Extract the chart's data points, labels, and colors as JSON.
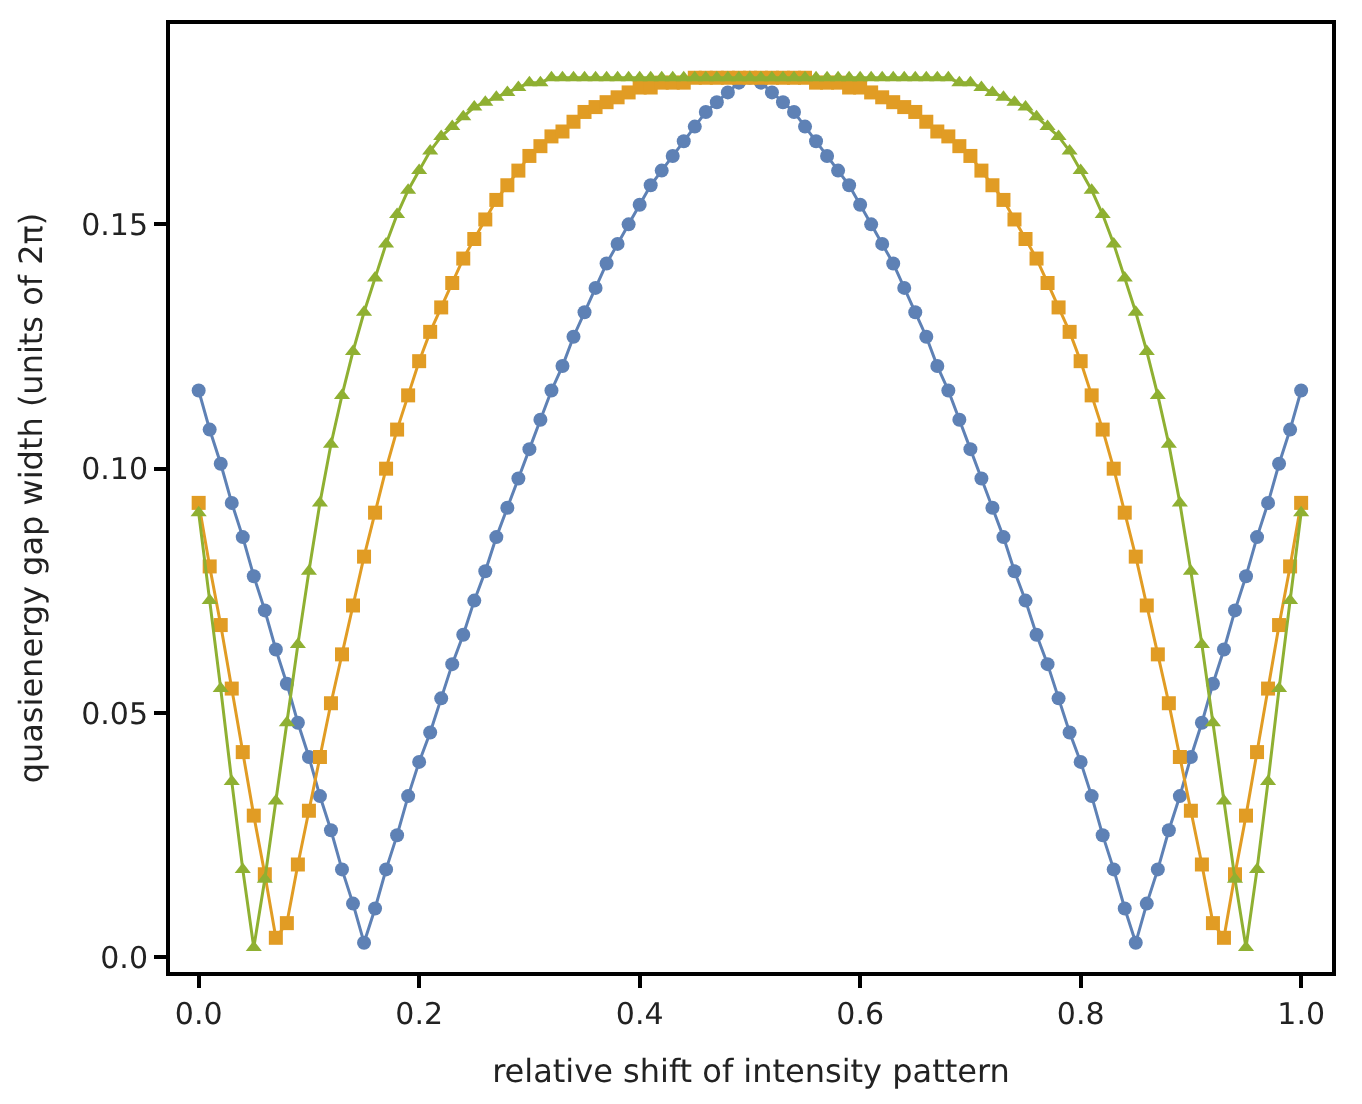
{
  "chart_data": {
    "type": "line",
    "xlabel": "relative shift of intensity pattern",
    "ylabel": "quasienergy gap width (units of 2π)",
    "x": [
      0,
      0.01,
      0.02,
      0.03,
      0.04,
      0.05,
      0.06,
      0.07,
      0.08,
      0.09,
      0.1,
      0.11,
      0.12,
      0.13,
      0.14,
      0.15,
      0.16,
      0.17,
      0.18,
      0.19,
      0.2,
      0.21,
      0.22,
      0.23,
      0.24,
      0.25,
      0.26,
      0.27,
      0.28,
      0.29,
      0.3,
      0.31,
      0.32,
      0.33,
      0.34,
      0.35,
      0.36,
      0.37,
      0.38,
      0.39,
      0.4,
      0.41,
      0.42,
      0.43,
      0.44,
      0.45,
      0.46,
      0.47,
      0.48,
      0.49,
      0.5,
      0.51,
      0.52,
      0.53,
      0.54,
      0.55,
      0.56,
      0.57,
      0.58,
      0.59,
      0.6,
      0.61,
      0.62,
      0.63,
      0.64,
      0.65,
      0.66,
      0.67,
      0.68,
      0.69,
      0.7,
      0.71,
      0.72,
      0.73,
      0.74,
      0.75,
      0.76,
      0.77,
      0.78,
      0.79,
      0.8,
      0.81,
      0.82,
      0.83,
      0.84,
      0.85,
      0.86,
      0.87,
      0.88,
      0.89,
      0.9,
      0.91,
      0.92,
      0.93,
      0.94,
      0.95,
      0.96,
      0.97,
      0.98,
      0.99,
      1.0
    ],
    "series": [
      {
        "color": "#5e81b5",
        "marker": "circle",
        "values": [
          0.116,
          0.108,
          0.101,
          0.093,
          0.086,
          0.078,
          0.071,
          0.063,
          0.056,
          0.048,
          0.041,
          0.033,
          0.026,
          0.018,
          0.011,
          0.003,
          0.01,
          0.018,
          0.025,
          0.033,
          0.04,
          0.046,
          0.053,
          0.06,
          0.066,
          0.073,
          0.079,
          0.086,
          0.092,
          0.098,
          0.104,
          0.11,
          0.116,
          0.121,
          0.127,
          0.132,
          0.137,
          0.142,
          0.146,
          0.15,
          0.154,
          0.158,
          0.161,
          0.164,
          0.167,
          0.17,
          0.173,
          0.175,
          0.177,
          0.179,
          0.18,
          0.179,
          0.177,
          0.175,
          0.173,
          0.17,
          0.167,
          0.164,
          0.161,
          0.158,
          0.154,
          0.15,
          0.146,
          0.142,
          0.137,
          0.132,
          0.127,
          0.121,
          0.116,
          0.11,
          0.104,
          0.098,
          0.092,
          0.086,
          0.079,
          0.073,
          0.066,
          0.06,
          0.053,
          0.046,
          0.04,
          0.033,
          0.025,
          0.018,
          0.01,
          0.003,
          0.011,
          0.018,
          0.026,
          0.033,
          0.041,
          0.048,
          0.056,
          0.063,
          0.071,
          0.078,
          0.086,
          0.093,
          0.101,
          0.108,
          0.116
        ]
      },
      {
        "color": "#e19c24",
        "marker": "square",
        "values": [
          0.093,
          0.08,
          0.068,
          0.055,
          0.042,
          0.029,
          0.017,
          0.004,
          0.007,
          0.019,
          0.03,
          0.041,
          0.052,
          0.062,
          0.072,
          0.082,
          0.091,
          0.1,
          0.108,
          0.115,
          0.122,
          0.128,
          0.133,
          0.138,
          0.143,
          0.147,
          0.151,
          0.155,
          0.158,
          0.161,
          0.164,
          0.166,
          0.168,
          0.169,
          0.171,
          0.173,
          0.174,
          0.175,
          0.176,
          0.177,
          0.178,
          0.178,
          0.179,
          0.179,
          0.179,
          0.18,
          0.18,
          0.18,
          0.18,
          0.18,
          0.18,
          0.18,
          0.18,
          0.18,
          0.18,
          0.18,
          0.179,
          0.179,
          0.179,
          0.178,
          0.178,
          0.177,
          0.176,
          0.175,
          0.174,
          0.173,
          0.171,
          0.169,
          0.168,
          0.166,
          0.164,
          0.161,
          0.158,
          0.155,
          0.151,
          0.147,
          0.143,
          0.138,
          0.133,
          0.128,
          0.122,
          0.115,
          0.108,
          0.1,
          0.091,
          0.082,
          0.072,
          0.062,
          0.052,
          0.041,
          0.03,
          0.019,
          0.007,
          0.004,
          0.017,
          0.029,
          0.042,
          0.055,
          0.068,
          0.08,
          0.093
        ]
      },
      {
        "color": "#8fb032",
        "marker": "triangle",
        "values": [
          0.091,
          0.073,
          0.055,
          0.036,
          0.018,
          0.002,
          0.016,
          0.032,
          0.048,
          0.064,
          0.079,
          0.093,
          0.105,
          0.115,
          0.124,
          0.132,
          0.139,
          0.146,
          0.152,
          0.157,
          0.161,
          0.165,
          0.168,
          0.17,
          0.172,
          0.174,
          0.175,
          0.176,
          0.177,
          0.178,
          0.179,
          0.179,
          0.18,
          0.18,
          0.18,
          0.18,
          0.18,
          0.18,
          0.18,
          0.18,
          0.18,
          0.18,
          0.18,
          0.18,
          0.18,
          0.18,
          0.18,
          0.18,
          0.18,
          0.18,
          0.18,
          0.18,
          0.18,
          0.18,
          0.18,
          0.18,
          0.18,
          0.18,
          0.18,
          0.18,
          0.18,
          0.18,
          0.18,
          0.18,
          0.18,
          0.18,
          0.18,
          0.18,
          0.18,
          0.179,
          0.179,
          0.178,
          0.177,
          0.176,
          0.175,
          0.174,
          0.172,
          0.17,
          0.168,
          0.165,
          0.161,
          0.157,
          0.152,
          0.146,
          0.139,
          0.132,
          0.124,
          0.115,
          0.105,
          0.093,
          0.079,
          0.064,
          0.048,
          0.032,
          0.016,
          0.002,
          0.018,
          0.036,
          0.055,
          0.073,
          0.091
        ]
      }
    ],
    "xlim": [
      -0.026,
      1.028
    ],
    "ylim": [
      -0.003,
      0.191
    ],
    "xticks": [
      {
        "value": 0,
        "label": "0.0"
      },
      {
        "value": 0.2,
        "label": "0.2"
      },
      {
        "value": 0.4,
        "label": "0.4"
      },
      {
        "value": 0.6,
        "label": "0.6"
      },
      {
        "value": 0.8,
        "label": "0.8"
      },
      {
        "value": 1,
        "label": "1.0"
      }
    ],
    "yticks": [
      {
        "value": 0,
        "label": "0.0"
      },
      {
        "value": 0.05,
        "label": "0.05"
      },
      {
        "value": 0.1,
        "label": "0.10"
      },
      {
        "value": 0.15,
        "label": "0.15"
      }
    ],
    "line_style": "solid"
  }
}
